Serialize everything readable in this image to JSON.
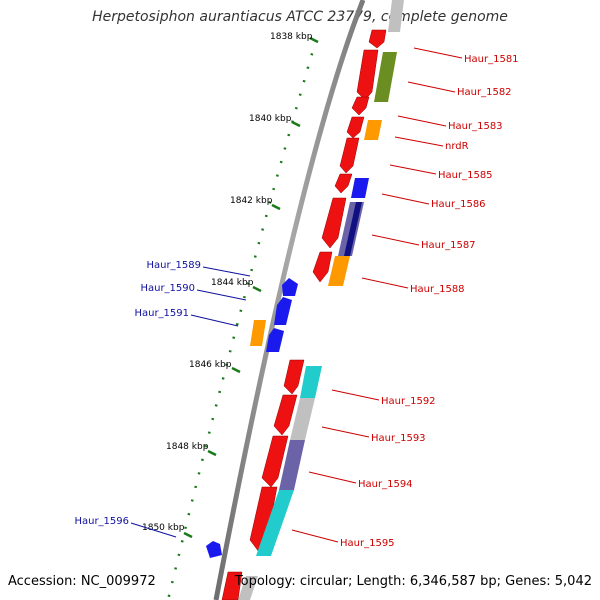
{
  "title": "Herpetosiphon aurantiacus ATCC 23779, complete genome",
  "footer": {
    "accession": "Accession: NC_009972",
    "summary": "Topology: circular; Length: 6,346,587 bp; Genes: 5,042"
  },
  "colors": {
    "backbone": "#8c8c8c",
    "tick": "#1a7a1a",
    "reverse_label": "#1010a0",
    "forward_label": "#cc0000",
    "red": "#ee1111",
    "blue": "#1a1aee",
    "orange": "#ff9900",
    "olive": "#6b8e23",
    "slate": "#6a63a8",
    "navy": "#101080",
    "cyan": "#22cccc",
    "grey": "#c0c0c0"
  },
  "kbp_marks": [
    "1838 kbp",
    "1840 kbp",
    "1842 kbp",
    "1844 kbp",
    "1846 kbp",
    "1848 kbp",
    "1850 kbp"
  ],
  "forward_genes": [
    "Haur_1581",
    "Haur_1582",
    "Haur_1583",
    "nrdR",
    "Haur_1585",
    "Haur_1586",
    "Haur_1587",
    "Haur_1588",
    "Haur_1592",
    "Haur_1593",
    "Haur_1594",
    "Haur_1595"
  ],
  "reverse_genes": [
    "Haur_1589",
    "Haur_1590",
    "Haur_1591",
    "Haur_1596"
  ]
}
